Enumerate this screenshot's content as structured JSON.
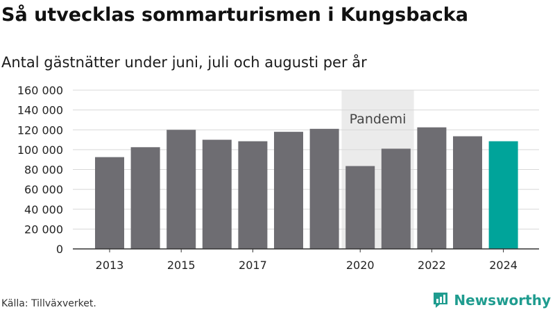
{
  "title": "Så utvecklas sommarturismen i Kungsbacka",
  "subtitle": "Antal gästnätter under juni, juli och augusti per år",
  "source": "Källa: Tillväxverket.",
  "brand": {
    "name": "Newsworthy"
  },
  "colors": {
    "bar": "#6e6d72",
    "highlight": "#00a49a",
    "shade": "#ebebeb",
    "brand": "#1f9c8f"
  },
  "chart_data": {
    "type": "bar",
    "categories": [
      "2013",
      "2014",
      "2015",
      "2016",
      "2017",
      "2018",
      "2019",
      "2020",
      "2021",
      "2022",
      "2023",
      "2024"
    ],
    "values": [
      92500,
      102500,
      120000,
      110000,
      108500,
      118000,
      121000,
      83500,
      101000,
      122500,
      113500,
      108500
    ],
    "highlight_category": "2024",
    "x_tick_labels": [
      "2013",
      "2015",
      "2017",
      "2020",
      "2022",
      "2024"
    ],
    "y_ticks": [
      0,
      20000,
      40000,
      60000,
      80000,
      100000,
      120000,
      140000,
      160000
    ],
    "y_tick_labels": [
      "0",
      "20 000",
      "40 000",
      "60 000",
      "80 000",
      "100 000",
      "120 000",
      "140 000",
      "160 000"
    ],
    "ylim": [
      0,
      160000
    ],
    "grid": true,
    "annotation": {
      "text": "Pandemi",
      "from": "2020",
      "to": "2021"
    }
  }
}
